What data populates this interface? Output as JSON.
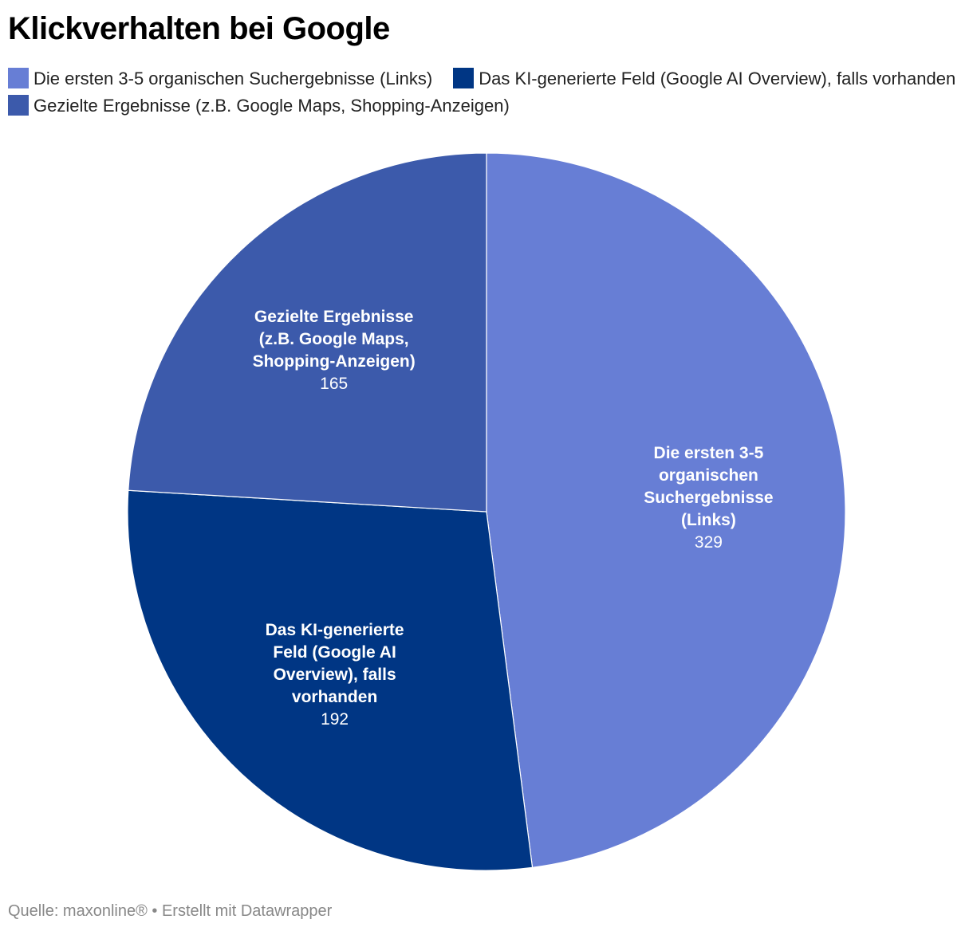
{
  "chart_data": {
    "type": "pie",
    "title": "Klickverhalten bei Google",
    "slices": [
      {
        "name": "Die ersten 3-5 organischen Suchergebnisse (Links)",
        "label_lines": [
          "Die ersten 3-5",
          "organischen",
          "Suchergebnisse",
          "(Links)"
        ],
        "value": 329,
        "color": "#677ed5"
      },
      {
        "name": "Das KI-generierte Feld (Google AI Overview), falls vorhanden",
        "label_lines": [
          "Das KI-generierte",
          "Feld (Google AI",
          "Overview), falls",
          "vorhanden"
        ],
        "value": 192,
        "color": "#003684"
      },
      {
        "name": "Gezielte Ergebnisse (z.B. Google Maps, Shopping-Anzeigen)",
        "label_lines": [
          "Gezielte Ergebnisse",
          "(z.B. Google Maps,",
          "Shopping-Anzeigen)"
        ],
        "value": 165,
        "color": "#3c5aab"
      }
    ],
    "legend_position": "top",
    "start": "12 o'clock, clockwise"
  },
  "source": "Quelle: maxonline® • Erstellt mit Datawrapper"
}
